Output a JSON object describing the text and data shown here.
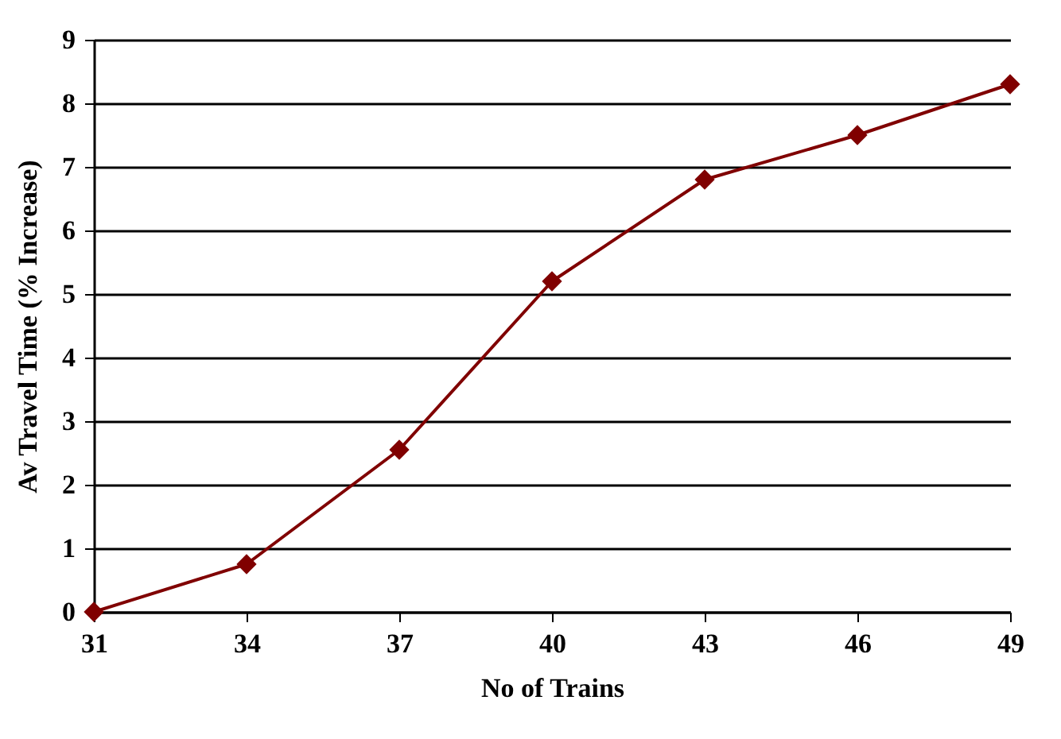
{
  "chart_data": {
    "type": "line",
    "xlabel": "No of Trains",
    "ylabel": "Av Travel Time (% Increase)",
    "x": [
      31,
      34,
      37,
      40,
      43,
      46,
      49
    ],
    "series": [
      {
        "color": "#800000",
        "values": [
          0,
          0.75,
          2.55,
          5.2,
          6.8,
          7.5,
          8.3
        ]
      }
    ],
    "xlim": [
      31,
      49
    ],
    "xticks": [
      31,
      34,
      37,
      40,
      43,
      46,
      49
    ],
    "ylim": [
      0,
      9
    ],
    "yticks": [
      0,
      1,
      2,
      3,
      4,
      5,
      6,
      7,
      8,
      9
    ],
    "grid": "y",
    "marker": "diamond",
    "line_style": "solid"
  }
}
